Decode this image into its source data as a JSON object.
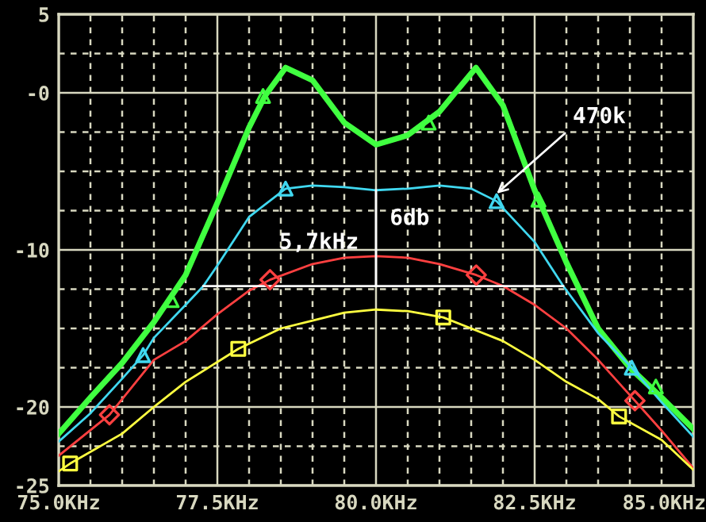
{
  "chart_data": {
    "type": "line",
    "xlim": [
      75,
      85
    ],
    "ylim": [
      -25,
      5
    ],
    "xticks": [
      {
        "value": 75,
        "label": "75.0KHz"
      },
      {
        "value": 75.5,
        "label": null
      },
      {
        "value": 76,
        "label": null
      },
      {
        "value": 76.5,
        "label": null
      },
      {
        "value": 77,
        "label": null
      },
      {
        "value": 77.5,
        "label": "77.5KHz"
      },
      {
        "value": 78,
        "label": null
      },
      {
        "value": 78.5,
        "label": null
      },
      {
        "value": 79,
        "label": null
      },
      {
        "value": 79.5,
        "label": null
      },
      {
        "value": 80,
        "label": "80.0KHz"
      },
      {
        "value": 80.5,
        "label": null
      },
      {
        "value": 81,
        "label": null
      },
      {
        "value": 81.5,
        "label": null
      },
      {
        "value": 82,
        "label": null
      },
      {
        "value": 82.5,
        "label": "82.5KHz"
      },
      {
        "value": 83,
        "label": null
      },
      {
        "value": 83.5,
        "label": null
      },
      {
        "value": 84,
        "label": null
      },
      {
        "value": 84.5,
        "label": null
      },
      {
        "value": 85,
        "label": "85.0KHz"
      }
    ],
    "yticks": [
      {
        "value": -25,
        "label": "-25"
      },
      {
        "value": -22.5,
        "label": null
      },
      {
        "value": -20,
        "label": "-20"
      },
      {
        "value": -17.5,
        "label": null
      },
      {
        "value": -15,
        "label": null
      },
      {
        "value": -12.5,
        "label": null
      },
      {
        "value": -10,
        "label": "-10"
      },
      {
        "value": -7.5,
        "label": null
      },
      {
        "value": -5,
        "label": null
      },
      {
        "value": -2.5,
        "label": null
      },
      {
        "value": 0,
        "label": "-0"
      },
      {
        "value": 2.5,
        "label": null
      },
      {
        "value": 5,
        "label": "5"
      }
    ],
    "grid": true,
    "series": [
      {
        "type": "line",
        "color": "#40ff40",
        "x": [
          75,
          75.5,
          76,
          76.5,
          77,
          77.5,
          78,
          78.25,
          78.575,
          79,
          79.5,
          80,
          80.5,
          81,
          81.575,
          82,
          82.5,
          83,
          83.5,
          84,
          84.5,
          85
        ],
        "values": [
          -21.7,
          -19.4,
          -17.2,
          -14.6,
          -11.6,
          -7.0,
          -2.2,
          -0.2,
          1.6,
          0.8,
          -1.9,
          -3.3,
          -2.7,
          -1.2,
          1.6,
          -0.8,
          -6.2,
          -10.8,
          -15.0,
          -17.5,
          -19.4,
          -21.4
        ]
      },
      {
        "type": "line",
        "color": "#40d8f0",
        "x": [
          75,
          75.5,
          76,
          76.33,
          76.5,
          77,
          77.28,
          77.5,
          78,
          78.575,
          79,
          79.5,
          80,
          80.5,
          81,
          81.5,
          81.9,
          82.5,
          82.95,
          83.5,
          84.03,
          84.5,
          85
        ],
        "values": [
          -22.2,
          -20.4,
          -18.2,
          -16.7,
          -15.6,
          -13.5,
          -12.3,
          -11.0,
          -7.9,
          -6.1,
          -5.9,
          -6.0,
          -6.2,
          -6.1,
          -5.9,
          -6.1,
          -6.9,
          -9.5,
          -12.3,
          -15.3,
          -17.5,
          -19.7,
          -21.9
        ]
      },
      {
        "type": "line",
        "color": "#ff4040",
        "x": [
          75,
          75.8,
          76.5,
          77,
          77.5,
          78,
          78.33,
          79,
          79.5,
          80,
          80.5,
          81,
          81.58,
          82,
          82.5,
          83,
          83.5,
          84.08,
          84.5,
          85
        ],
        "values": [
          -23.1,
          -20.5,
          -17.0,
          -15.8,
          -14.1,
          -12.6,
          -11.9,
          -10.9,
          -10.5,
          -10.4,
          -10.5,
          -10.9,
          -11.6,
          -12.3,
          -13.5,
          -15.0,
          -17.0,
          -19.6,
          -21.5,
          -23.9
        ]
      },
      {
        "type": "line",
        "color": "#ffff40",
        "x": [
          75,
          75.18,
          76,
          76.5,
          77,
          77.83,
          78.5,
          79,
          79.5,
          80,
          80.5,
          81.06,
          81.5,
          82,
          82.5,
          83,
          83.5,
          83.83,
          84.5,
          85
        ],
        "values": [
          -24.1,
          -23.6,
          -21.7,
          -20.0,
          -18.4,
          -16.3,
          -15.0,
          -14.5,
          -14.0,
          -13.8,
          -13.9,
          -14.3,
          -15.0,
          -15.8,
          -17.0,
          -18.4,
          -19.5,
          -20.6,
          -22.1,
          -24.0
        ]
      },
      {
        "type": "scatter",
        "color": "#40ff40",
        "marker": "triangle",
        "x": [
          76.78,
          78.22,
          80.83,
          82.56,
          84.41
        ],
        "values": [
          -13.2,
          -0.2,
          -1.9,
          -6.8,
          -18.7
        ]
      },
      {
        "type": "scatter",
        "color": "#40d8f0",
        "marker": "triangle",
        "x": [
          76.33,
          78.575,
          81.9,
          84.03
        ],
        "values": [
          -16.7,
          -6.1,
          -6.9,
          -17.5
        ]
      },
      {
        "type": "scatter",
        "color": "#ff4040",
        "marker": "diamond",
        "x": [
          75.8,
          78.33,
          81.58,
          84.08
        ],
        "values": [
          -20.5,
          -11.9,
          -11.6,
          -19.6
        ]
      },
      {
        "type": "scatter",
        "color": "#ffff40",
        "marker": "square",
        "x": [
          75.18,
          77.83,
          81.06,
          83.83
        ],
        "values": [
          -23.6,
          -16.3,
          -14.3,
          -20.6
        ]
      },
      {
        "type": "line",
        "color": "#ffffff",
        "x": [
          80,
          80
        ],
        "values": [
          -6.2,
          -12.3
        ]
      },
      {
        "type": "line",
        "color": "#ffffff",
        "x": [
          77.28,
          82.95
        ],
        "values": [
          -12.3,
          -12.3
        ]
      }
    ],
    "annotations": [
      {
        "text": "470k",
        "x": 81.85,
        "y": -6.6
      },
      "6db",
      "5,7kHz"
    ]
  }
}
